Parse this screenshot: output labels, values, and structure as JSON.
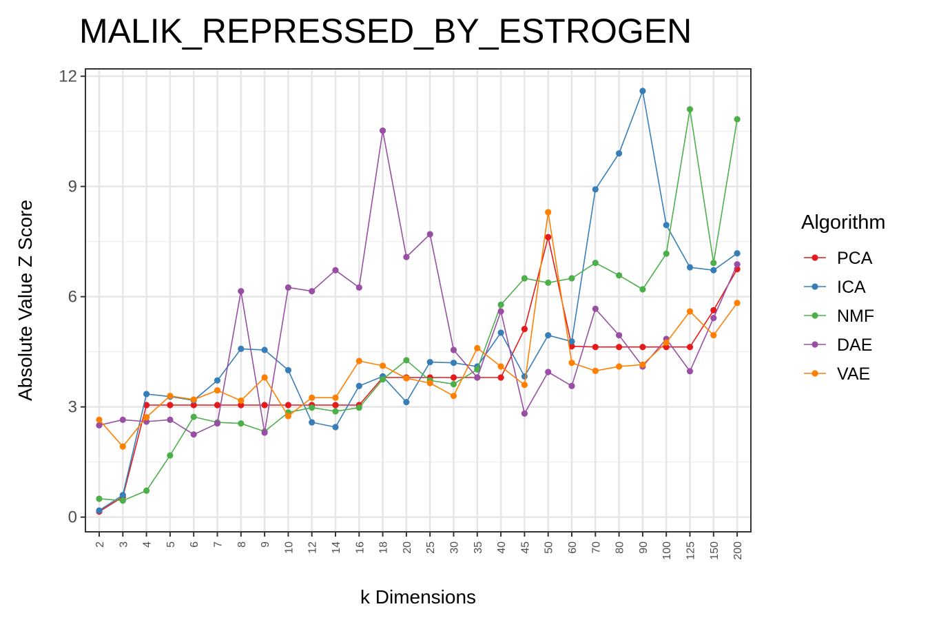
{
  "chart_data": {
    "type": "line",
    "title": "MALIK_REPRESSED_BY_ESTROGEN",
    "xlabel": "k Dimensions",
    "ylabel": "Absolute Value Z Score",
    "categories": [
      "2",
      "3",
      "4",
      "5",
      "6",
      "7",
      "8",
      "9",
      "10",
      "12",
      "14",
      "16",
      "18",
      "20",
      "25",
      "30",
      "35",
      "40",
      "45",
      "50",
      "60",
      "70",
      "80",
      "90",
      "100",
      "125",
      "150",
      "200"
    ],
    "ylim": [
      -0.4,
      12.2
    ],
    "yticks": [
      0,
      3,
      6,
      9,
      12
    ],
    "grid": true,
    "legend": {
      "title": "Algorithm",
      "position": "right"
    },
    "series": [
      {
        "name": "PCA",
        "color": "#e41a1c",
        "values": [
          0.15,
          0.55,
          3.05,
          3.05,
          3.05,
          3.05,
          3.05,
          3.05,
          3.05,
          3.05,
          3.05,
          3.05,
          3.8,
          3.8,
          3.8,
          3.8,
          3.8,
          3.8,
          5.12,
          7.62,
          4.65,
          4.63,
          4.63,
          4.63,
          4.63,
          4.63,
          5.63,
          6.75
        ]
      },
      {
        "name": "ICA",
        "color": "#377eb8",
        "values": [
          0.18,
          0.6,
          3.35,
          3.28,
          3.18,
          3.72,
          4.58,
          4.55,
          4.0,
          2.58,
          2.45,
          3.57,
          3.83,
          3.13,
          4.22,
          4.2,
          4.1,
          5.02,
          3.83,
          4.95,
          4.78,
          8.92,
          9.9,
          11.6,
          7.95,
          6.8,
          6.72,
          7.18
        ]
      },
      {
        "name": "NMF",
        "color": "#4daf4a",
        "values": [
          0.5,
          0.45,
          0.72,
          1.68,
          2.73,
          2.58,
          2.55,
          2.33,
          2.85,
          2.98,
          2.88,
          2.98,
          3.75,
          4.27,
          3.72,
          3.62,
          4.02,
          5.78,
          6.5,
          6.38,
          6.5,
          6.92,
          6.58,
          6.2,
          7.17,
          11.1,
          6.92,
          10.83
        ]
      },
      {
        "name": "DAE",
        "color": "#984ea3",
        "values": [
          2.5,
          2.65,
          2.6,
          2.65,
          2.25,
          2.55,
          6.15,
          2.3,
          6.25,
          6.15,
          6.72,
          6.25,
          10.52,
          7.08,
          7.7,
          4.55,
          3.8,
          5.6,
          2.82,
          3.95,
          3.57,
          5.67,
          4.95,
          4.1,
          4.85,
          3.97,
          5.42,
          6.88
        ]
      },
      {
        "name": "VAE",
        "color": "#ff7f00",
        "values": [
          2.65,
          1.92,
          2.72,
          3.3,
          3.2,
          3.45,
          3.17,
          3.8,
          2.75,
          3.25,
          3.25,
          4.25,
          4.12,
          3.78,
          3.65,
          3.3,
          4.6,
          4.1,
          3.6,
          8.3,
          4.2,
          3.98,
          4.1,
          4.15,
          4.75,
          5.6,
          4.95,
          5.83
        ]
      }
    ]
  }
}
